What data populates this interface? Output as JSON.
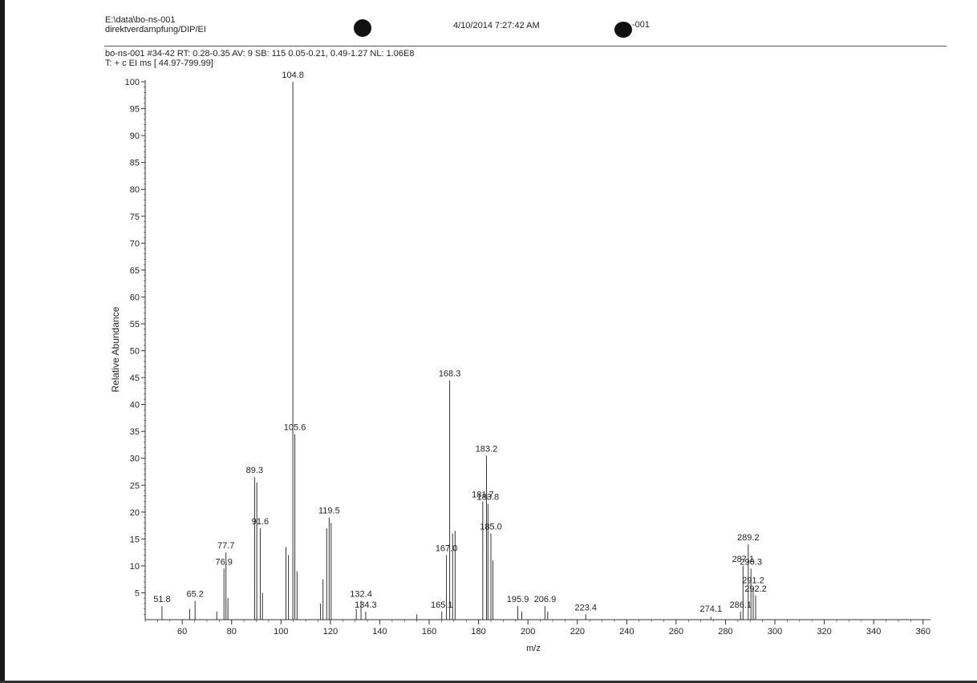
{
  "header": {
    "file_path": "E:\\data\\bo-ns-001",
    "method": "direktverdampfung/DIP/EI",
    "datetime": "4/10/2014 7:27:42 AM",
    "sample_id": "-001",
    "scan_info": "bo-ns-001 #34-42  RT: 0.28-0.35  AV: 9  SB: 115  0.05-0.21, 0.49-1.27  NL: 1.06E8",
    "filter": "T: + c EI ms [ 44.97-799.99]"
  },
  "colors": {
    "line": "#333333",
    "text": "#222222",
    "blob": "#111111"
  },
  "chart_data": {
    "type": "bar",
    "title": "",
    "xlabel": "m/z",
    "ylabel": "Relative Abundance",
    "xlim": [
      45,
      363
    ],
    "ylim": [
      0,
      100
    ],
    "x_ticks": [
      60,
      80,
      100,
      120,
      140,
      160,
      180,
      200,
      220,
      240,
      260,
      280,
      300,
      320,
      340,
      360
    ],
    "y_ticks": [
      5,
      10,
      15,
      20,
      25,
      30,
      35,
      40,
      45,
      50,
      55,
      60,
      65,
      70,
      75,
      80,
      85,
      90,
      95,
      100
    ],
    "grid": false,
    "peaks": [
      {
        "mz": 51.8,
        "intensity": 2.5,
        "label": "51.8"
      },
      {
        "mz": 63.0,
        "intensity": 2.0
      },
      {
        "mz": 65.2,
        "intensity": 3.5,
        "label": "65.2"
      },
      {
        "mz": 74.0,
        "intensity": 1.5
      },
      {
        "mz": 76.9,
        "intensity": 9.5,
        "label": "76.9"
      },
      {
        "mz": 77.7,
        "intensity": 12.5,
        "label": "77.7"
      },
      {
        "mz": 78.5,
        "intensity": 4.0
      },
      {
        "mz": 89.3,
        "intensity": 26.5,
        "label": "89.3"
      },
      {
        "mz": 90.2,
        "intensity": 25.5
      },
      {
        "mz": 91.6,
        "intensity": 17.0,
        "label": "91.6"
      },
      {
        "mz": 92.5,
        "intensity": 5.0
      },
      {
        "mz": 102.0,
        "intensity": 13.5
      },
      {
        "mz": 103.0,
        "intensity": 12.0
      },
      {
        "mz": 104.8,
        "intensity": 100.0,
        "label": "104.8"
      },
      {
        "mz": 105.6,
        "intensity": 34.5,
        "label": "105.6"
      },
      {
        "mz": 106.5,
        "intensity": 9.0
      },
      {
        "mz": 116.0,
        "intensity": 3.0
      },
      {
        "mz": 117.0,
        "intensity": 7.5
      },
      {
        "mz": 118.5,
        "intensity": 17.0
      },
      {
        "mz": 119.5,
        "intensity": 19.0,
        "label": "119.5"
      },
      {
        "mz": 120.3,
        "intensity": 18.0
      },
      {
        "mz": 130.5,
        "intensity": 2.0
      },
      {
        "mz": 132.4,
        "intensity": 3.5,
        "label": "132.4"
      },
      {
        "mz": 134.3,
        "intensity": 1.5,
        "label": "134.3"
      },
      {
        "mz": 155.0,
        "intensity": 1.0
      },
      {
        "mz": 165.1,
        "intensity": 1.5,
        "label": "165.1"
      },
      {
        "mz": 167.0,
        "intensity": 12.0,
        "label": "167.0"
      },
      {
        "mz": 168.3,
        "intensity": 44.5,
        "label": "168.3"
      },
      {
        "mz": 169.5,
        "intensity": 16.0
      },
      {
        "mz": 170.5,
        "intensity": 16.5
      },
      {
        "mz": 181.7,
        "intensity": 22.0,
        "label": "181.7"
      },
      {
        "mz": 183.2,
        "intensity": 30.5,
        "label": "183.2"
      },
      {
        "mz": 183.8,
        "intensity": 21.5,
        "label": "183.8"
      },
      {
        "mz": 185.0,
        "intensity": 16.0,
        "label": "185.0"
      },
      {
        "mz": 185.8,
        "intensity": 11.0
      },
      {
        "mz": 195.9,
        "intensity": 2.5,
        "label": "195.9"
      },
      {
        "mz": 197.5,
        "intensity": 1.5
      },
      {
        "mz": 206.9,
        "intensity": 2.5,
        "label": "206.9"
      },
      {
        "mz": 208.0,
        "intensity": 1.5
      },
      {
        "mz": 223.4,
        "intensity": 1.0,
        "label": "223.4"
      },
      {
        "mz": 274.1,
        "intensity": 0.5,
        "label": "274.1"
      },
      {
        "mz": 286.1,
        "intensity": 1.5,
        "label": "286.1"
      },
      {
        "mz": 287.1,
        "intensity": 10.0,
        "label": "287.1"
      },
      {
        "mz": 289.2,
        "intensity": 14.0,
        "label": "289.2"
      },
      {
        "mz": 290.3,
        "intensity": 9.5,
        "label": "290.3"
      },
      {
        "mz": 291.2,
        "intensity": 6.0,
        "label": "291.2"
      },
      {
        "mz": 292.2,
        "intensity": 4.5,
        "label": "292.2"
      }
    ]
  }
}
